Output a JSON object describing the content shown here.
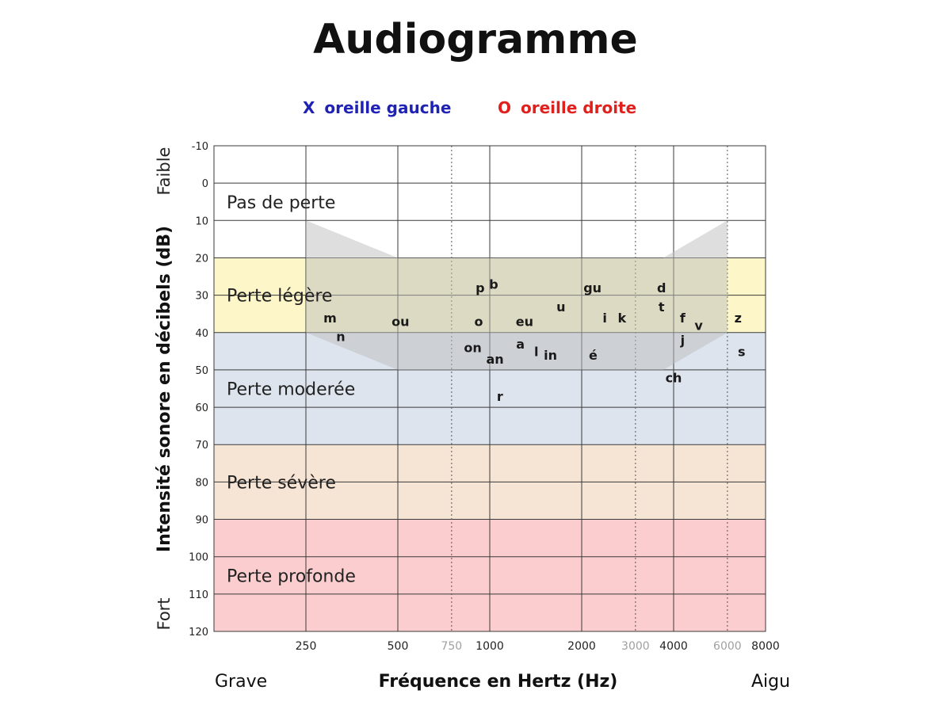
{
  "title": "Audiogramme",
  "legend": {
    "left": {
      "symbol": "X",
      "label": "oreille gauche",
      "color": "#1f22b4"
    },
    "right": {
      "symbol": "O",
      "label": "oreille droite",
      "color": "#e0201c"
    }
  },
  "chart_data": {
    "type": "area",
    "title": "Audiogramme",
    "xlabel": "Fréquence en Hertz (Hz)",
    "ylabel": "Intensité sonore en décibels (dB)",
    "x_scale": "log2",
    "x_ticks": [
      {
        "label": "250",
        "value": 250,
        "minor": false
      },
      {
        "label": "500",
        "value": 500,
        "minor": false
      },
      {
        "label": "750",
        "value": 750,
        "minor": true
      },
      {
        "label": "1000",
        "value": 1000,
        "minor": false
      },
      {
        "label": "2000",
        "value": 2000,
        "minor": false
      },
      {
        "label": "3000",
        "value": 3000,
        "minor": true
      },
      {
        "label": "4000",
        "value": 4000,
        "minor": false
      },
      {
        "label": "6000",
        "value": 6000,
        "minor": true
      },
      {
        "label": "8000",
        "value": 8000,
        "minor": false
      }
    ],
    "x_range": [
      125,
      8000
    ],
    "y_ticks": [
      -10,
      0,
      10,
      20,
      30,
      40,
      50,
      60,
      70,
      80,
      90,
      100,
      110,
      120
    ],
    "y_range": [
      -10,
      120
    ],
    "y_inverted": true,
    "x_end_labels": {
      "low": "Grave",
      "high": "Aigu"
    },
    "y_end_labels": {
      "top": "Faible",
      "bottom": "Fort"
    },
    "bands": [
      {
        "label": "Pas de perte",
        "from": -10,
        "to": 20,
        "color": "#ffffff"
      },
      {
        "label": "Perte légère",
        "from": 20,
        "to": 40,
        "color": "#fdf6c8"
      },
      {
        "label": "Perte moderée",
        "from": 40,
        "to": 70,
        "color": "#dde4ee"
      },
      {
        "label": "Perte sévère",
        "from": 70,
        "to": 90,
        "color": "#f6e4d4"
      },
      {
        "label": "Perte profonde",
        "from": 90,
        "to": 120,
        "color": "#fbcdce"
      }
    ],
    "speech_banana": {
      "color": "#bdbdbd",
      "opacity": 0.5,
      "points": [
        {
          "x": 250,
          "y": 10
        },
        {
          "x": 500,
          "y": 20
        },
        {
          "x": 3700,
          "y": 20
        },
        {
          "x": 6000,
          "y": 10
        },
        {
          "x": 6000,
          "y": 40
        },
        {
          "x": 3700,
          "y": 50
        },
        {
          "x": 500,
          "y": 50
        },
        {
          "x": 250,
          "y": 40
        }
      ]
    },
    "phonemes": [
      {
        "label": "m",
        "x": 300,
        "y": 36
      },
      {
        "label": "n",
        "x": 325,
        "y": 41
      },
      {
        "label": "ou",
        "x": 510,
        "y": 37
      },
      {
        "label": "p",
        "x": 930,
        "y": 28
      },
      {
        "label": "b",
        "x": 1030,
        "y": 27
      },
      {
        "label": "o",
        "x": 920,
        "y": 37
      },
      {
        "label": "on",
        "x": 880,
        "y": 44
      },
      {
        "label": "an",
        "x": 1040,
        "y": 47
      },
      {
        "label": "a",
        "x": 1260,
        "y": 43
      },
      {
        "label": "eu",
        "x": 1300,
        "y": 37
      },
      {
        "label": "l",
        "x": 1420,
        "y": 45
      },
      {
        "label": "in",
        "x": 1580,
        "y": 46
      },
      {
        "label": "u",
        "x": 1710,
        "y": 33
      },
      {
        "label": "gu",
        "x": 2170,
        "y": 28
      },
      {
        "label": "é",
        "x": 2180,
        "y": 46
      },
      {
        "label": "i",
        "x": 2380,
        "y": 36
      },
      {
        "label": "k",
        "x": 2710,
        "y": 36
      },
      {
        "label": "d",
        "x": 3650,
        "y": 28
      },
      {
        "label": "t",
        "x": 3650,
        "y": 33
      },
      {
        "label": "f",
        "x": 4280,
        "y": 36
      },
      {
        "label": "v",
        "x": 4830,
        "y": 38
      },
      {
        "label": "j",
        "x": 4280,
        "y": 42
      },
      {
        "label": "ch",
        "x": 4000,
        "y": 52
      },
      {
        "label": "z",
        "x": 6500,
        "y": 36
      },
      {
        "label": "s",
        "x": 6680,
        "y": 45
      },
      {
        "label": "r",
        "x": 1080,
        "y": 57
      }
    ]
  }
}
